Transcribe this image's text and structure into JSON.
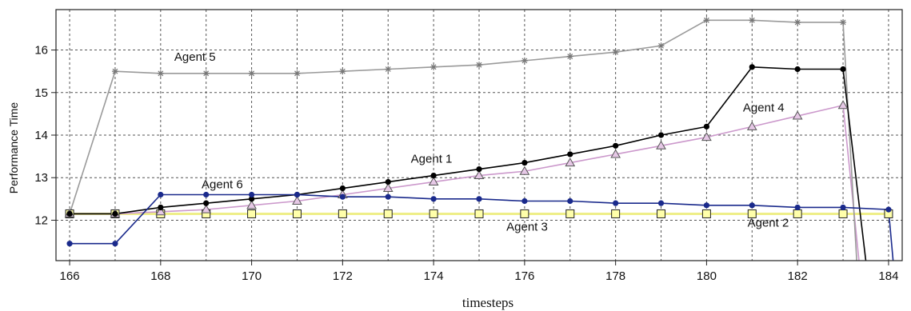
{
  "chart_data": {
    "type": "line",
    "title": "",
    "xlabel": "timesteps",
    "ylabel": "Performance Time",
    "xlim": [
      165.7,
      184.3
    ],
    "ylim": [
      11.05,
      16.95
    ],
    "xticks": [
      166,
      168,
      170,
      172,
      174,
      176,
      178,
      180,
      182,
      184
    ],
    "yticks": [
      12,
      13,
      14,
      15,
      16
    ],
    "grid": true,
    "x": [
      166,
      167,
      168,
      169,
      170,
      171,
      172,
      173,
      174,
      175,
      176,
      177,
      178,
      179,
      180,
      181,
      182,
      183,
      184
    ],
    "series": [
      {
        "name": "Agent 5",
        "color": "#9a9a9a",
        "marker": "star",
        "values": [
          12.15,
          15.5,
          15.45,
          15.45,
          15.45,
          15.45,
          15.5,
          15.55,
          15.6,
          15.65,
          15.75,
          15.85,
          15.95,
          16.1,
          16.7,
          16.7,
          16.65,
          16.65,
          null
        ],
        "drop": {
          "x": 183.3,
          "y": 11.05
        }
      },
      {
        "name": "Agent 1",
        "color": "#000000",
        "marker": "dot",
        "values": [
          12.15,
          12.15,
          12.3,
          12.4,
          12.5,
          12.6,
          12.75,
          12.9,
          13.05,
          13.2,
          13.35,
          13.55,
          13.75,
          14.0,
          14.2,
          15.6,
          15.55,
          15.55,
          null
        ],
        "drop": {
          "x": 183.5,
          "y": 11.05
        }
      },
      {
        "name": "Agent 4",
        "color": "#cc99cc",
        "marker": "triangle",
        "values": [
          12.15,
          12.15,
          12.2,
          12.25,
          12.35,
          12.45,
          12.6,
          12.75,
          12.9,
          13.05,
          13.15,
          13.35,
          13.55,
          13.75,
          13.95,
          14.2,
          14.45,
          14.7,
          null
        ],
        "drop": {
          "x": 183.35,
          "y": 11.05
        }
      },
      {
        "name": "Agent 6",
        "color": "#1a2a8c",
        "marker": "dot",
        "values": [
          11.45,
          11.45,
          12.6,
          12.6,
          12.6,
          12.6,
          12.55,
          12.55,
          12.5,
          12.5,
          12.45,
          12.45,
          12.4,
          12.4,
          12.35,
          12.35,
          12.3,
          12.3,
          12.25
        ],
        "drop": {
          "x": 184.1,
          "y": 11.05
        }
      },
      {
        "name": "Agent 3",
        "color": "#eeee88",
        "marker": "square",
        "values": [
          12.15,
          12.15,
          12.15,
          12.15,
          12.15,
          12.15,
          12.15,
          12.15,
          12.15,
          12.15,
          12.15,
          12.15,
          12.15,
          12.15,
          12.15,
          12.15,
          12.15,
          12.15,
          12.15
        ],
        "drop": null
      }
    ],
    "annotations": [
      {
        "text": "Agent 5",
        "x": 168.3,
        "y": 15.75
      },
      {
        "text": "Agent 4",
        "x": 180.8,
        "y": 14.55
      },
      {
        "text": "Agent 1",
        "x": 173.5,
        "y": 13.35
      },
      {
        "text": "Agent 6",
        "x": 168.9,
        "y": 12.75
      },
      {
        "text": "Agent 3",
        "x": 175.6,
        "y": 11.75
      },
      {
        "text": "Agent 2",
        "x": 180.9,
        "y": 11.85
      }
    ]
  }
}
